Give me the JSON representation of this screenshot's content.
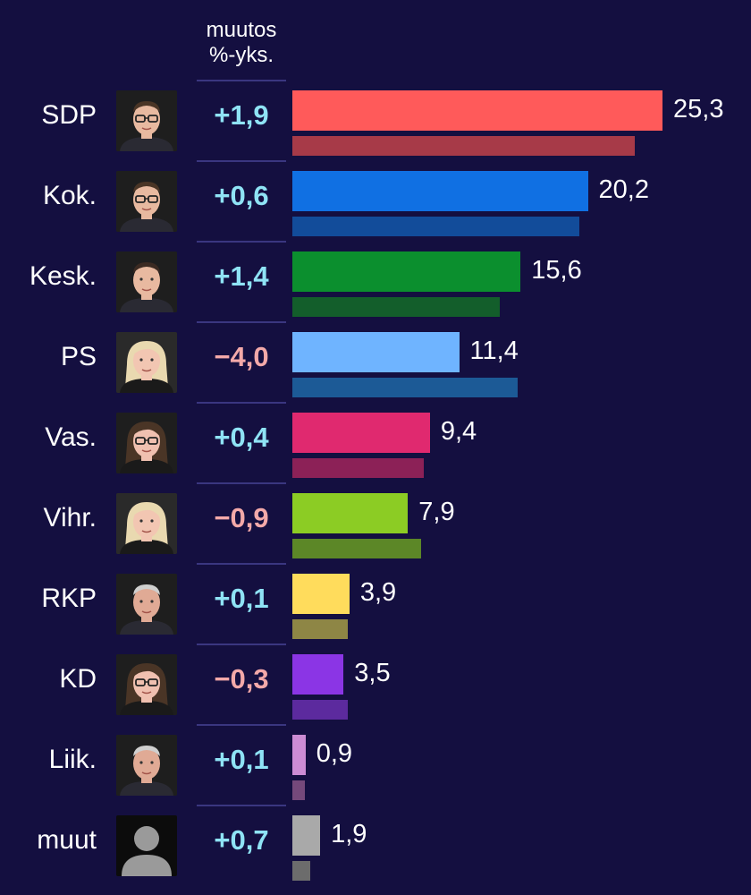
{
  "header": {
    "line1": "muutos",
    "line2": "%-yks."
  },
  "colors": {
    "positive": "#8fe3f5",
    "negative": "#f3a9a9",
    "background": "#140f40"
  },
  "chart_data": {
    "type": "bar",
    "orientation": "horizontal",
    "categories": [
      "SDP",
      "Kok.",
      "Kesk.",
      "PS",
      "Vas.",
      "Vihr.",
      "RKP",
      "KD",
      "Liik.",
      "muut"
    ],
    "series": [
      {
        "values": [
          25.3,
          20.2,
          15.6,
          11.4,
          9.4,
          7.9,
          3.9,
          3.5,
          0.9,
          1.9
        ],
        "labels": [
          "25,3",
          "20,2",
          "15,6",
          "11,4",
          "9,4",
          "7,9",
          "3,9",
          "3,5",
          "0,9",
          "1,9"
        ],
        "colors": [
          "#ff5a5a",
          "#1070e3",
          "#0b8f2e",
          "#6fb4ff",
          "#e0296f",
          "#8ccc24",
          "#ffdc5c",
          "#8b35e5",
          "#cc8cd4",
          "#a9a9a9"
        ]
      },
      {
        "values": [
          23.4,
          19.6,
          14.2,
          15.4,
          9.0,
          8.8,
          3.8,
          3.8,
          0.8,
          1.2
        ],
        "colors": [
          "#a73a48",
          "#124c9a",
          "#135e2b",
          "#1c5a96",
          "#8c2157",
          "#5c8727",
          "#8e8645",
          "#5c2a9e",
          "#75497b",
          "#6c6c6c"
        ]
      }
    ],
    "changes": [
      "+1,9",
      "+0,6",
      "+1,4",
      "−4,0",
      "+0,4",
      "−0,9",
      "+0,1",
      "−0,3",
      "+0,1",
      "+0,7"
    ],
    "change_signs": [
      "pos",
      "pos",
      "pos",
      "neg",
      "pos",
      "neg",
      "pos",
      "neg",
      "pos",
      "pos"
    ],
    "photo_icons": [
      "man-glasses-portrait",
      "man-glasses-portrait",
      "man-portrait",
      "woman-blonde-portrait",
      "woman-glasses-portrait",
      "woman-blonde-portrait",
      "man-grey-portrait",
      "woman-glasses-portrait",
      "man-grey-portrait",
      "generic-person-icon"
    ],
    "xlim": [
      0,
      25.3
    ]
  }
}
